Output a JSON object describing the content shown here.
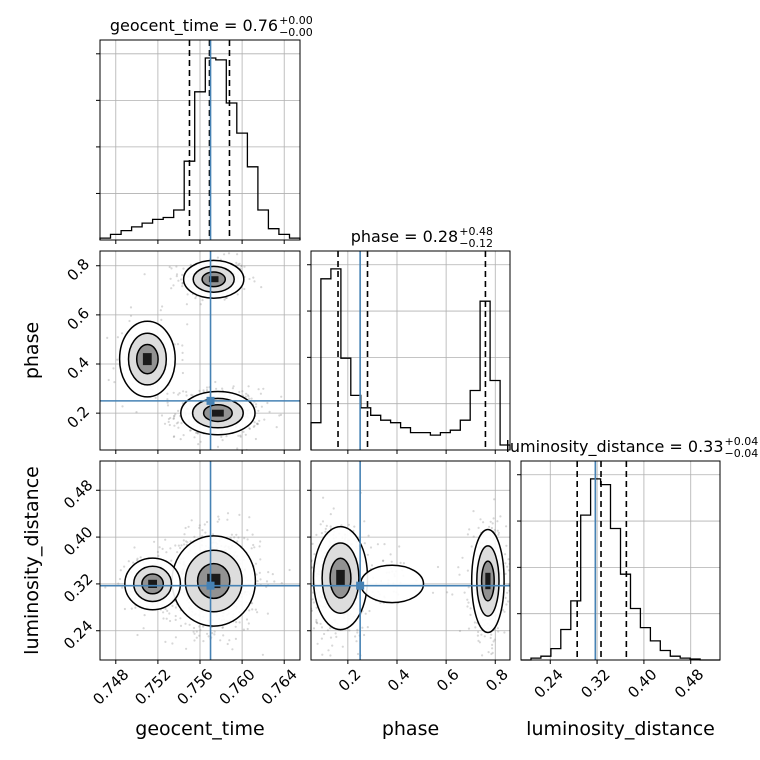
{
  "chart_data": {
    "type": "corner",
    "truth_color": "#4682b4",
    "line_color": "#000000",
    "parameters": [
      {
        "name": "geocent_time",
        "xlabel": "geocent_time",
        "range": [
          0.7465,
          0.7655
        ],
        "ticks": [
          0.748,
          0.752,
          0.756,
          0.76,
          0.764
        ],
        "tick_labels": [
          "0.748",
          "0.752",
          "0.756",
          "0.760",
          "0.764"
        ],
        "title_main": "geocent_time = 0.76",
        "title_sup": "+0.00",
        "title_sub": "−0.00",
        "truth": 0.757,
        "quantiles": [
          0.755,
          0.7569,
          0.7588
        ],
        "hist_edges": [
          0.7465,
          0.7475,
          0.7485,
          0.7495,
          0.7505,
          0.7515,
          0.7525,
          0.7535,
          0.7545,
          0.7555,
          0.7565,
          0.7575,
          0.7585,
          0.7595,
          0.7605,
          0.7615,
          0.7625,
          0.7635,
          0.7645,
          0.7655
        ],
        "hist_counts": [
          0.01,
          0.03,
          0.05,
          0.07,
          0.09,
          0.11,
          0.12,
          0.16,
          0.42,
          0.79,
          0.97,
          0.96,
          0.73,
          0.57,
          0.39,
          0.16,
          0.06,
          0.03,
          0.01
        ]
      },
      {
        "name": "phase",
        "xlabel": "phase",
        "ylabel": "phase",
        "range": [
          0.05,
          0.86
        ],
        "ticks": [
          0.2,
          0.4,
          0.6,
          0.8
        ],
        "tick_labels": [
          "0.2",
          "0.4",
          "0.6",
          "0.8"
        ],
        "title_main": "phase = 0.28",
        "title_sup": "+0.48",
        "title_sub": "−0.12",
        "truth": 0.25,
        "quantiles": [
          0.16,
          0.28,
          0.76
        ],
        "hist_edges": [
          0.05,
          0.0905,
          0.131,
          0.1715,
          0.212,
          0.2525,
          0.293,
          0.3335,
          0.374,
          0.4145,
          0.455,
          0.4955,
          0.536,
          0.5765,
          0.617,
          0.6575,
          0.698,
          0.7385,
          0.779,
          0.8195,
          0.86
        ],
        "hist_counts": [
          0.11,
          0.69,
          0.73,
          0.37,
          0.22,
          0.17,
          0.14,
          0.12,
          0.11,
          0.09,
          0.07,
          0.07,
          0.06,
          0.07,
          0.08,
          0.12,
          0.24,
          0.6,
          0.28,
          0.02
        ]
      },
      {
        "name": "luminosity_distance",
        "xlabel": "luminosity_distance",
        "ylabel": "luminosity_distance",
        "range": [
          0.19,
          0.53
        ],
        "ticks": [
          0.24,
          0.32,
          0.4,
          0.48
        ],
        "tick_labels": [
          "0.24",
          "0.32",
          "0.40",
          "0.48"
        ],
        "title_main": "luminosity_distance = 0.33",
        "title_sup": "+0.04",
        "title_sub": "−0.04",
        "truth": 0.317,
        "quantiles": [
          0.286,
          0.3267,
          0.37
        ],
        "hist_edges": [
          0.19,
          0.207,
          0.224,
          0.241,
          0.258,
          0.275,
          0.292,
          0.309,
          0.326,
          0.343,
          0.36,
          0.377,
          0.394,
          0.411,
          0.428,
          0.445,
          0.462,
          0.479,
          0.496,
          0.513,
          0.53
        ],
        "hist_counts": [
          0.0,
          0.01,
          0.02,
          0.06,
          0.16,
          0.31,
          0.76,
          0.95,
          0.92,
          0.69,
          0.45,
          0.27,
          0.17,
          0.1,
          0.05,
          0.02,
          0.01,
          0.005,
          0.0,
          0.0
        ]
      }
    ],
    "density_modes": [
      {
        "x": "geocent_time",
        "y": "phase",
        "center": [
          0.7573,
          0.745
        ],
        "spread": [
          0.0013,
          0.035
        ],
        "weight": 0.35
      },
      {
        "x": "geocent_time",
        "y": "phase",
        "center": [
          0.7577,
          0.2
        ],
        "spread": [
          0.0016,
          0.04
        ],
        "weight": 0.5
      },
      {
        "x": "geocent_time",
        "y": "phase",
        "center": [
          0.751,
          0.42
        ],
        "spread": [
          0.0012,
          0.07
        ],
        "weight": 0.15
      },
      {
        "x": "geocent_time",
        "y": "luminosity_distance",
        "center": [
          0.7573,
          0.325
        ],
        "spread": [
          0.0018,
          0.035
        ],
        "weight": 0.85
      },
      {
        "x": "geocent_time",
        "y": "luminosity_distance",
        "center": [
          0.7515,
          0.32
        ],
        "spread": [
          0.0012,
          0.02
        ],
        "weight": 0.15
      },
      {
        "x": "phase",
        "y": "luminosity_distance",
        "center": [
          0.17,
          0.33
        ],
        "spread": [
          0.05,
          0.04
        ],
        "weight": 0.55
      },
      {
        "x": "phase",
        "y": "luminosity_distance",
        "center": [
          0.77,
          0.325
        ],
        "spread": [
          0.03,
          0.04
        ],
        "weight": 0.4
      },
      {
        "x": "phase",
        "y": "luminosity_distance",
        "center": [
          0.38,
          0.32
        ],
        "spread": [
          0.08,
          0.02
        ],
        "weight": 0.05
      }
    ],
    "grid": true
  }
}
